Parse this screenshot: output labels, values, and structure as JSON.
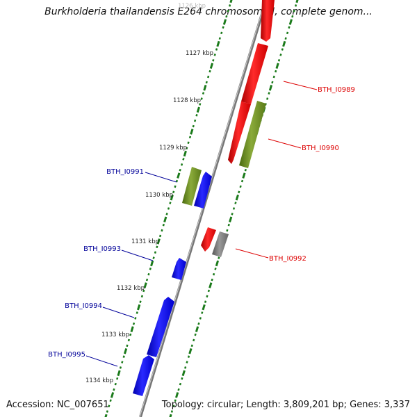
{
  "title": "Burkholderia thailandensis E264 chromosome I, complete genom...",
  "accession": "Accession: NC_007651",
  "summary": "Topology: circular; Length: 3,809,201 bp; Genes: 3,337",
  "ticks": [
    {
      "label": "1126 kbp",
      "faded": true
    },
    {
      "label": "1127 kbp"
    },
    {
      "label": "1128 kbp"
    },
    {
      "label": "1129 kbp"
    },
    {
      "label": "1130 kbp"
    },
    {
      "label": "1131 kbp"
    },
    {
      "label": "1132 kbp"
    },
    {
      "label": "1133 kbp"
    },
    {
      "label": "1134 kbp"
    }
  ],
  "genes": [
    {
      "label": "BTH_I0989",
      "color": "#dd0000",
      "side": "right"
    },
    {
      "label": "BTH_I0990",
      "color": "#dd0000",
      "side": "right"
    },
    {
      "label": "BTH_I0991",
      "color": "#000099",
      "side": "left"
    },
    {
      "label": "BTH_I0992",
      "color": "#dd0000",
      "side": "right"
    },
    {
      "label": "BTH_I0993",
      "color": "#000099",
      "side": "left"
    },
    {
      "label": "BTH_I0994",
      "color": "#000099",
      "side": "left"
    },
    {
      "label": "BTH_I0995",
      "color": "#000099",
      "side": "left"
    }
  ],
  "colors": {
    "forward_feature": "#ff0000",
    "reverse_feature": "#0000ee",
    "rna_feature": "#6b8e23",
    "other_feature": "#777777",
    "backbone": "#888888",
    "ruler": "#1a7a1a"
  }
}
